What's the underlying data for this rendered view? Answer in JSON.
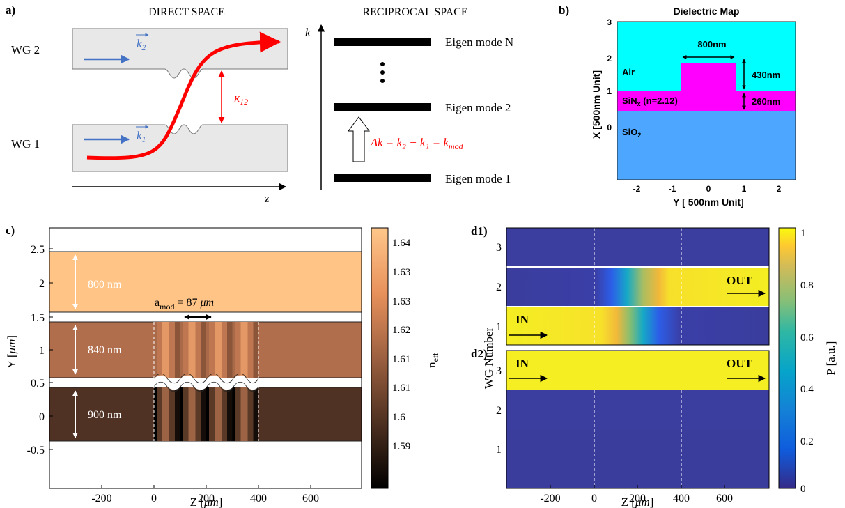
{
  "panel_a": {
    "label": "a)",
    "direct_title": "DIRECT SPACE",
    "reciprocal_title": "RECIPROCAL SPACE",
    "wg2_label": "WG 2",
    "wg1_label": "WG 1",
    "k2_label": "k",
    "k2_sub": "2",
    "k1_label": "k",
    "k1_sub": "1",
    "kappa_label": "κ",
    "kappa_sub": "12",
    "z_label": "z",
    "k_axis_label": "k",
    "mode_n": "Eigen mode N",
    "mode_2": "Eigen mode 2",
    "mode_1": "Eigen mode 1",
    "delta_k_eq": "Δk = k₂ − k₁ = k",
    "delta_k_sub": "mod",
    "colors": {
      "wg_fill": "#e8e8e8",
      "path_red": "#ff0000",
      "arrow_blue": "#4472c4"
    }
  },
  "panel_b": {
    "label": "b)",
    "title": "Dielectric Map",
    "xlabel": "Y [ 500nm Unit]",
    "ylabel": "X [500nm Unit]",
    "x_ticks": [
      "-2",
      "-1",
      "0",
      "1",
      "2"
    ],
    "y_ticks": [
      "0",
      "1",
      "2",
      "3"
    ],
    "region_air": "Air",
    "region_sin": "SiN",
    "region_sin_sub": "x",
    "region_sin_n": " (n=2.12)",
    "region_sio2": "SiO",
    "region_sio2_sub": "2",
    "dim_width": "800nm",
    "dim_height_top": "430nm",
    "dim_height_bottom": "260nm",
    "colors": {
      "air": "#00ffff",
      "sin": "#ff00ff",
      "sio2": "#4da6ff"
    }
  },
  "panel_c": {
    "label": "c)",
    "xlabel": "Z [",
    "xlabel_unit": "μm",
    "xlabel_end": "]",
    "ylabel": "Y [",
    "ylabel_unit": "μm",
    "ylabel_end": "]",
    "x_ticks": [
      "-200",
      "0",
      "200",
      "400",
      "600"
    ],
    "y_ticks": [
      "2.5",
      "2",
      "1.5",
      "1",
      "0.5",
      "0",
      "-0.5"
    ],
    "wg_widths": [
      "800 nm",
      "840 nm",
      "900 nm"
    ],
    "a_mod_prefix": "a",
    "a_mod_sub": "mod",
    "a_mod_value": " = 87 ",
    "a_mod_unit": "μm",
    "colorbar_label": "n",
    "colorbar_sub": "eff",
    "colorbar_ticks": [
      "1.64",
      "1.63",
      "1.63",
      "1.62",
      "1.61",
      "1.61",
      "1.6",
      "1.59"
    ]
  },
  "panel_d": {
    "label_d1": "d1)",
    "label_d2": "d2)",
    "ylabel": "WG Number",
    "xlabel": "Z [",
    "xlabel_unit": "μm",
    "xlabel_end": "]",
    "x_ticks": [
      "-200",
      "0",
      "200",
      "400",
      "600"
    ],
    "d1_y_ticks": [
      "3",
      "2",
      "1"
    ],
    "d2_y_ticks": [
      "3",
      "2",
      "1"
    ],
    "in_label": "IN",
    "out_label": "OUT",
    "colorbar_label": "P [a.u.]",
    "colorbar_ticks": [
      "1",
      "0.8",
      "0.6",
      "0.4",
      "0.2",
      "0"
    ]
  }
}
